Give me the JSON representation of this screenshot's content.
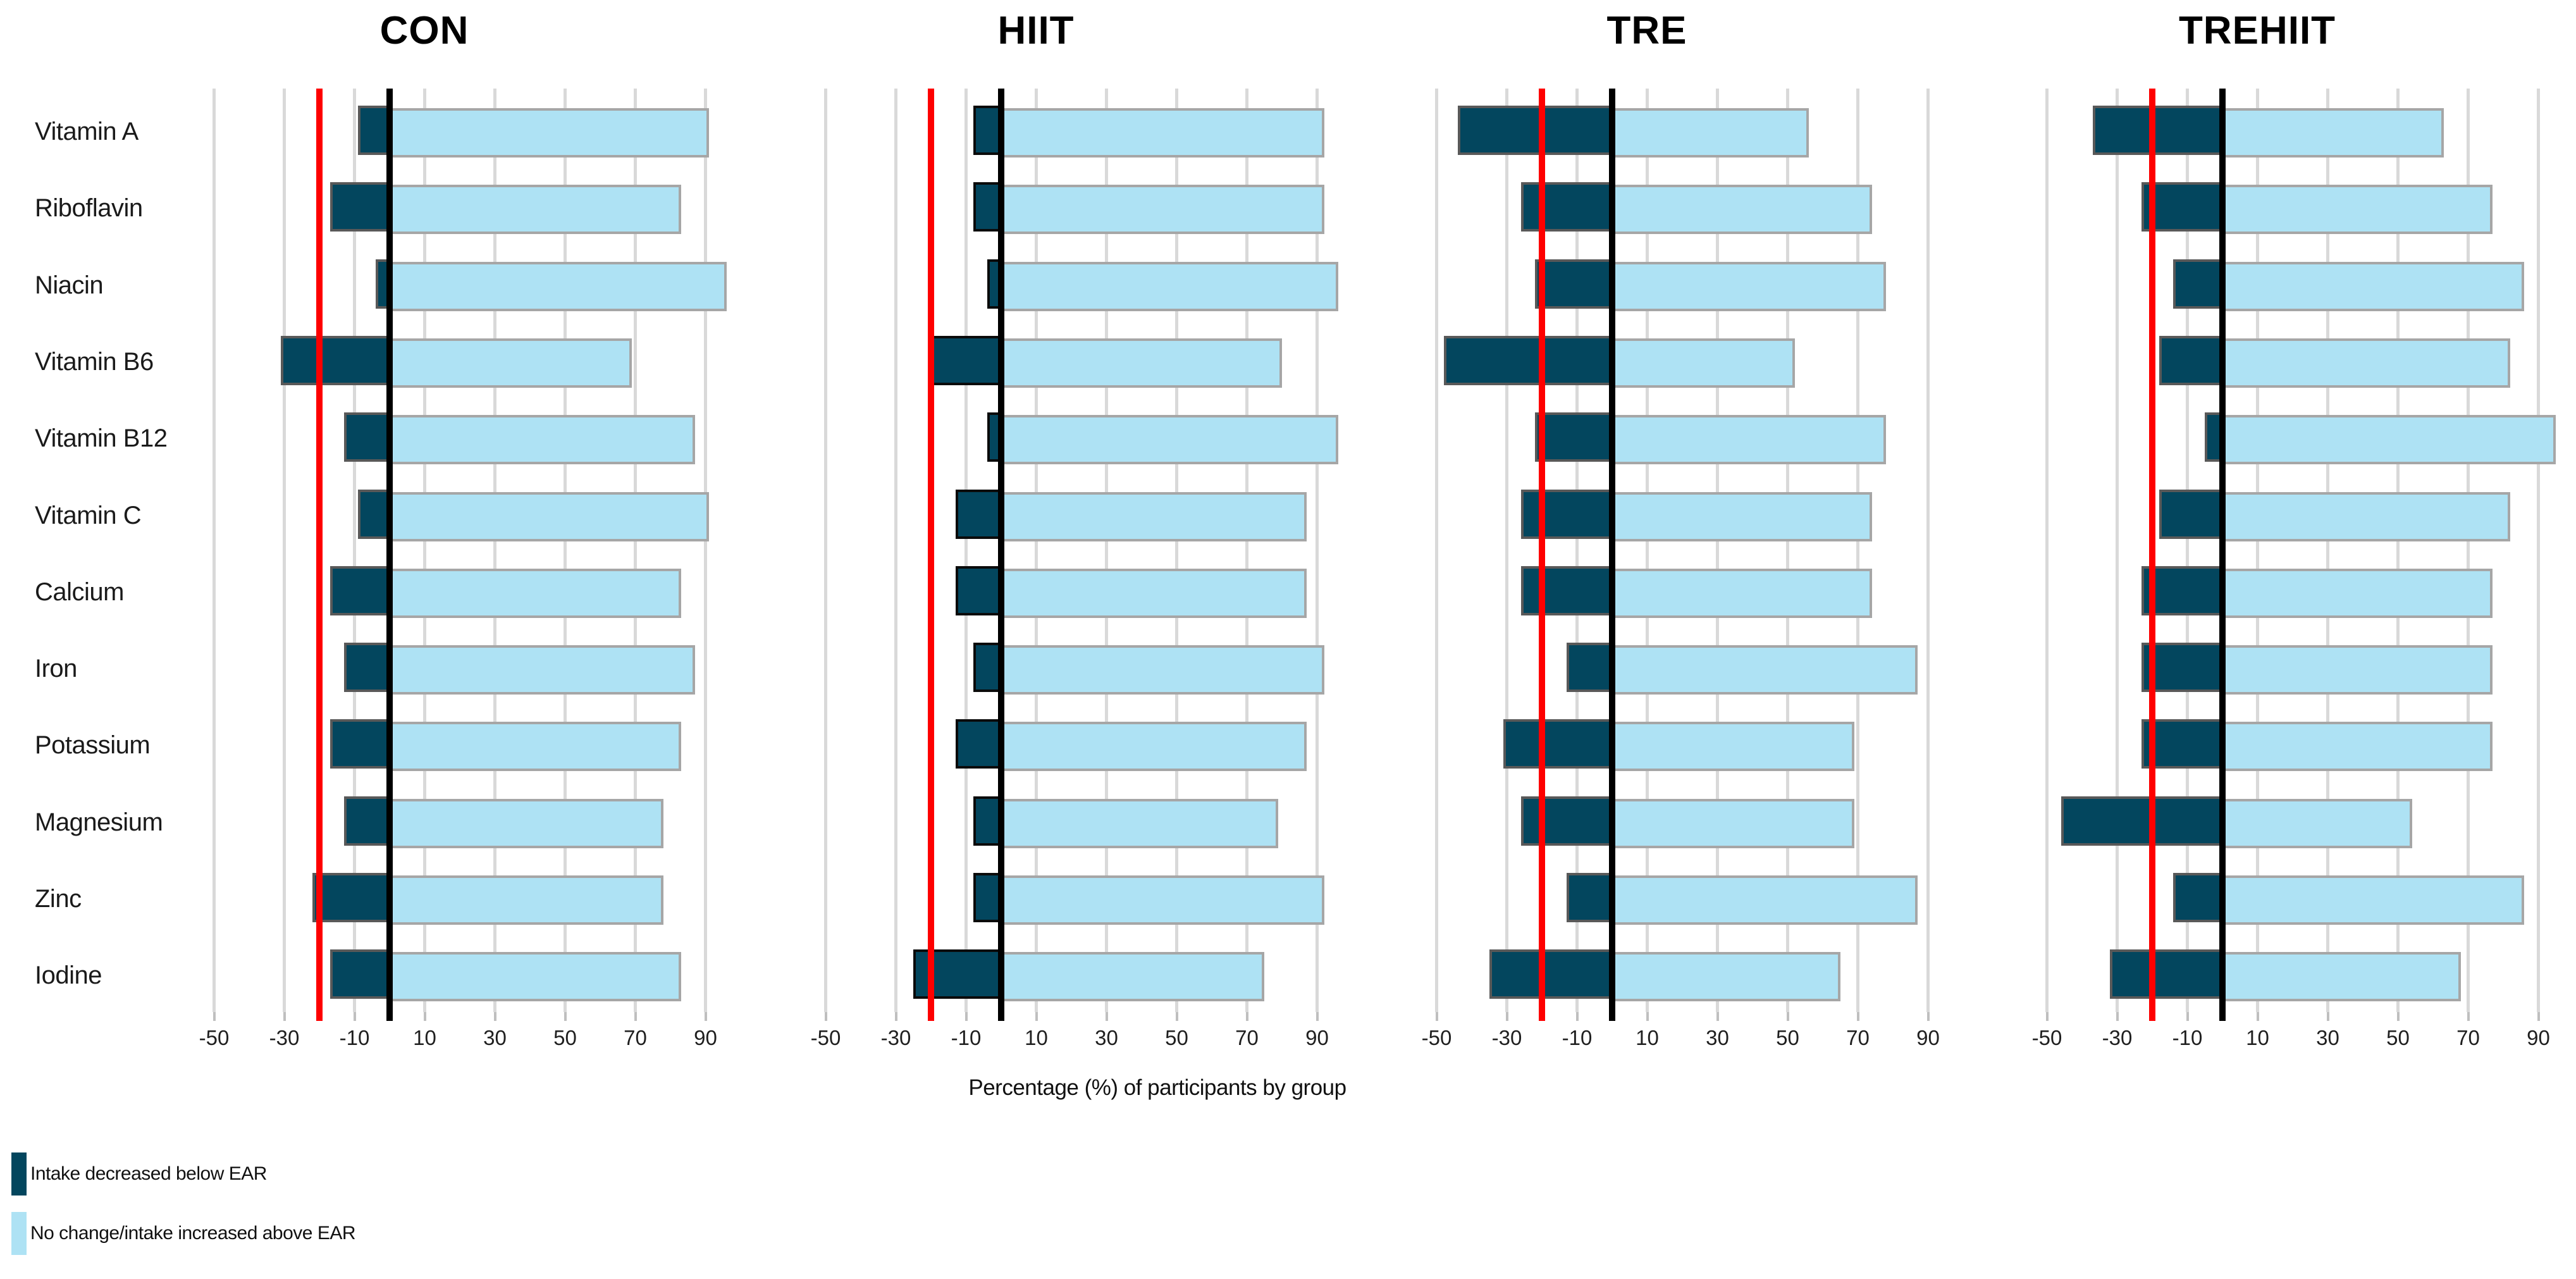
{
  "chart_data": {
    "type": "bar",
    "variant": "horizontal-diverging-stacked, 4 panels sharing category axis",
    "categories": [
      "Vitamin A",
      "Riboflavin",
      "Niacin",
      "Vitamin B6",
      "Vitamin B12",
      "Vitamin C",
      "Calcium",
      "Iron",
      "Potassium",
      "Magnesium",
      "Zinc",
      "Iodine"
    ],
    "xticks": [
      "-50",
      "-30",
      "-10",
      "10",
      "30",
      "50",
      "70",
      "90"
    ],
    "xtick_values": [
      -50,
      -30,
      -10,
      10,
      30,
      50,
      70,
      90
    ],
    "xlim": [
      -60,
      100
    ],
    "grid": "vertical gridlines every 20 units at labeled ticks",
    "xlabel": "Percentage (%) of participants by group",
    "reference_lines": [
      {
        "name": "threshold-line",
        "value": -20,
        "color": "#fe0000"
      },
      {
        "name": "zero-line",
        "value": 0,
        "color": "#000000"
      }
    ],
    "legend": [
      {
        "label": "Intake decreased below EAR",
        "color": "#03465e"
      },
      {
        "label": "No change/intake increased above EAR",
        "color": "#aee2f4"
      }
    ],
    "legend_position": "bottom-left",
    "panels": [
      {
        "title": "CON",
        "series": [
          {
            "name": "Intake decreased below EAR",
            "values": [
              -9,
              -17,
              -4,
              -31,
              -13,
              -9,
              -17,
              -13,
              -17,
              -13,
              -22,
              -17
            ]
          },
          {
            "name": "No change/intake increased above EAR",
            "values": [
              91,
              83,
              96,
              69,
              87,
              91,
              83,
              87,
              83,
              78,
              78,
              83
            ]
          }
        ]
      },
      {
        "title": "HIIT",
        "series": [
          {
            "name": "Intake decreased below EAR",
            "values": [
              -8,
              -8,
              -4,
              -20,
              -4,
              -13,
              -13,
              -8,
              -13,
              -8,
              -8,
              -25
            ]
          },
          {
            "name": "No change/intake increased above EAR",
            "values": [
              92,
              92,
              96,
              80,
              96,
              87,
              87,
              92,
              87,
              79,
              92,
              75
            ]
          }
        ]
      },
      {
        "title": "TRE",
        "series": [
          {
            "name": "Intake decreased below EAR",
            "values": [
              -44,
              -26,
              -22,
              -48,
              -22,
              -26,
              -26,
              -13,
              -31,
              -26,
              -13,
              -35
            ]
          },
          {
            "name": "No change/intake increased above EAR",
            "values": [
              56,
              74,
              78,
              52,
              78,
              74,
              74,
              87,
              69,
              69,
              87,
              65
            ]
          }
        ]
      },
      {
        "title": "TREHIIT",
        "series": [
          {
            "name": "Intake decreased below EAR",
            "values": [
              -37,
              -23,
              -14,
              -18,
              -5,
              -18,
              -23,
              -23,
              -23,
              -46,
              -14,
              -32
            ]
          },
          {
            "name": "No change/intake increased above EAR",
            "values": [
              63,
              77,
              86,
              82,
              95,
              82,
              77,
              77,
              77,
              54,
              86,
              68
            ]
          }
        ]
      }
    ]
  },
  "colors": {
    "decreased_fill": "#03465e",
    "no_change_fill": "#aee2f4",
    "decreased_border": "#595959",
    "no_change_border": "#a6a6a6",
    "gridline": "#d9d9d9",
    "threshold_line": "#fe0000",
    "zero_line": "#000000",
    "background": "#ffffff"
  }
}
